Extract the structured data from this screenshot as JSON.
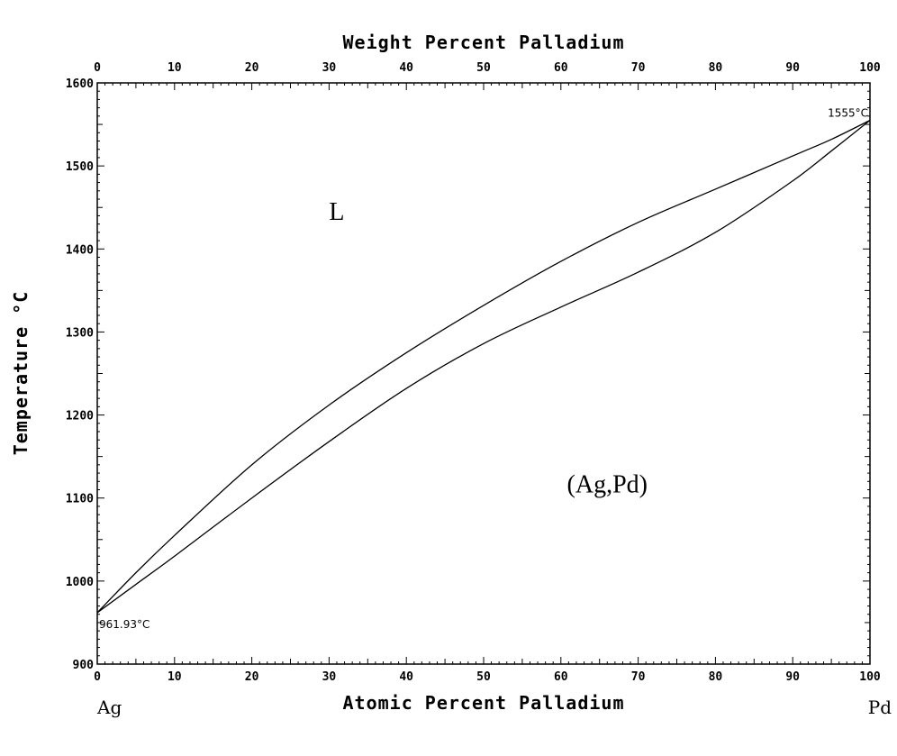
{
  "chart_data": {
    "type": "line",
    "xlabel": "Atomic Percent Palladium",
    "x2label": "Weight Percent Palladium",
    "ylabel": "Temperature °C",
    "xlim": [
      0,
      100
    ],
    "ylim": [
      900,
      1600
    ],
    "x_ticks": [
      0,
      10,
      20,
      30,
      40,
      50,
      60,
      70,
      80,
      90,
      100
    ],
    "x2_ticks": [
      0,
      10,
      20,
      30,
      40,
      50,
      60,
      70,
      80,
      90,
      100
    ],
    "y_ticks": [
      900,
      1000,
      1100,
      1200,
      1300,
      1400,
      1500,
      1600
    ],
    "grid": false,
    "legend": "none",
    "element_labels": {
      "left": "Ag",
      "right": "Pd"
    },
    "regions": [
      {
        "label": "L",
        "x": 31,
        "y": 1435
      },
      {
        "label": "(Ag,Pd)",
        "x": 66,
        "y": 1107
      }
    ],
    "annotations": [
      {
        "text": "961.93°C",
        "x": 0,
        "y": 961.93
      },
      {
        "text": "1555°C",
        "x": 100,
        "y": 1555
      }
    ],
    "series": [
      {
        "x": [
          0,
          5,
          10,
          20,
          30,
          40,
          50,
          60,
          70,
          80,
          90,
          95,
          100
        ],
        "y": [
          961.93,
          1010,
          1055,
          1140,
          1212,
          1275,
          1332,
          1385,
          1432,
          1472,
          1512,
          1532,
          1555
        ]
      },
      {
        "x": [
          0,
          5,
          10,
          20,
          30,
          40,
          50,
          60,
          70,
          80,
          90,
          95,
          100
        ],
        "y": [
          961.93,
          996,
          1030,
          1100,
          1168,
          1232,
          1286,
          1330,
          1372,
          1420,
          1482,
          1518,
          1555
        ]
      }
    ]
  }
}
